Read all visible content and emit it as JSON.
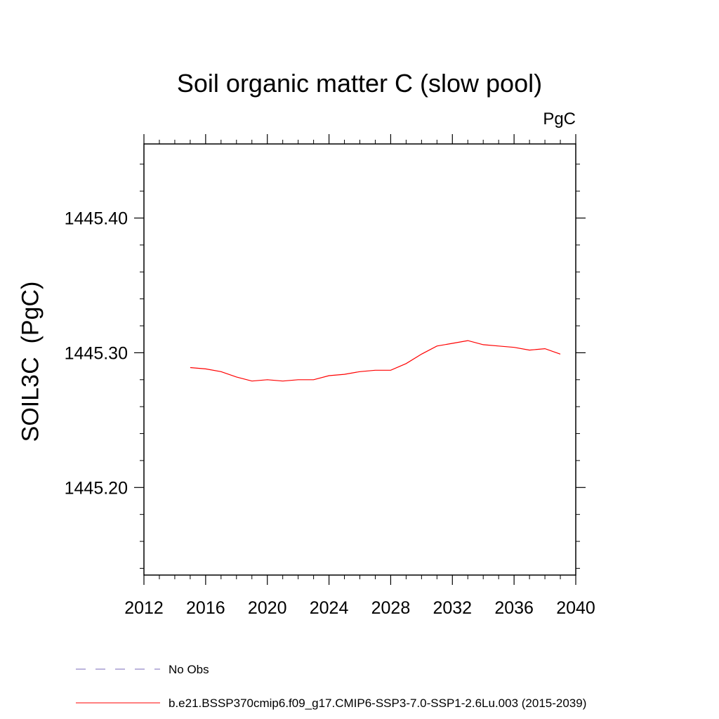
{
  "chart_data": {
    "type": "line",
    "title": "Soil organic matter C (slow pool)",
    "units": "PgC",
    "xlabel": "",
    "ylabel": "SOIL3C  (PgC)",
    "xlim": [
      2012,
      2040
    ],
    "ylim": [
      1445.135,
      1445.455
    ],
    "x_ticks": [
      2012,
      2016,
      2020,
      2024,
      2028,
      2032,
      2036,
      2040
    ],
    "x_tick_labels": [
      "2012",
      "2016",
      "2020",
      "2024",
      "2028",
      "2032",
      "2036",
      "2040"
    ],
    "y_ticks": [
      1445.2,
      1445.3,
      1445.4
    ],
    "y_tick_labels": [
      "1445.20",
      "1445.30",
      "1445.40"
    ],
    "series": [
      {
        "name": "b.e21.BSSP370cmip6.f09_g17.CMIP6-SSP3-7.0-SSP1-2.6Lu.003 (2015-2039)",
        "color": "#ff0000",
        "style": "solid",
        "x": [
          2015,
          2016,
          2017,
          2018,
          2019,
          2020,
          2021,
          2022,
          2023,
          2024,
          2025,
          2026,
          2027,
          2028,
          2029,
          2030,
          2031,
          2032,
          2033,
          2034,
          2035,
          2036,
          2037,
          2038,
          2039
        ],
        "values": [
          1445.289,
          1445.288,
          1445.286,
          1445.282,
          1445.279,
          1445.28,
          1445.279,
          1445.28,
          1445.28,
          1445.283,
          1445.284,
          1445.286,
          1445.287,
          1445.287,
          1445.292,
          1445.299,
          1445.305,
          1445.307,
          1445.309,
          1445.306,
          1445.305,
          1445.304,
          1445.302,
          1445.303,
          1445.299
        ]
      }
    ],
    "legend": [
      {
        "label": "No Obs",
        "color": "#7a6ab8",
        "style": "dashed"
      },
      {
        "label": "b.e21.BSSP370cmip6.f09_g17.CMIP6-SSP3-7.0-SSP1-2.6Lu.003 (2015-2039)",
        "color": "#ff0000",
        "style": "solid"
      }
    ],
    "legend_position": "bottom"
  }
}
